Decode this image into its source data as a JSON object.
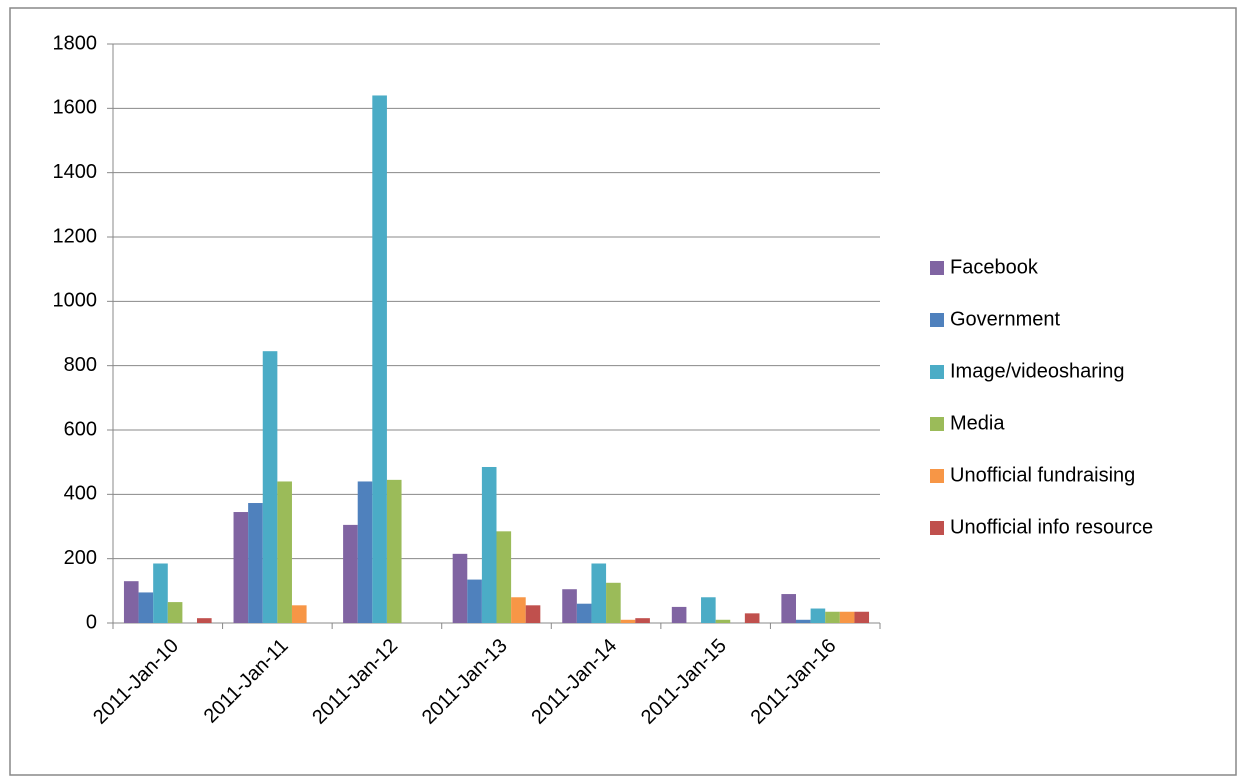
{
  "chart_data": {
    "type": "bar",
    "categories": [
      "2011-Jan-10",
      "2011-Jan-11",
      "2011-Jan-12",
      "2011-Jan-13",
      "2011-Jan-14",
      "2011-Jan-15",
      "2011-Jan-16"
    ],
    "series": [
      {
        "name": "Facebook",
        "color": "#8064a2",
        "values": [
          130,
          345,
          305,
          215,
          105,
          50,
          90
        ]
      },
      {
        "name": "Government",
        "color": "#4f81bd",
        "values": [
          95,
          373,
          440,
          135,
          60,
          0,
          10
        ]
      },
      {
        "name": "Image/videosharing",
        "color": "#4bacc6",
        "values": [
          185,
          845,
          1640,
          485,
          185,
          80,
          45
        ]
      },
      {
        "name": "Media",
        "color": "#9bbb59",
        "values": [
          65,
          440,
          445,
          285,
          125,
          10,
          35
        ]
      },
      {
        "name": "Unofficial fundraising",
        "color": "#f79646",
        "values": [
          0,
          55,
          0,
          80,
          10,
          0,
          35
        ]
      },
      {
        "name": "Unofficial info resource",
        "color": "#c0504d",
        "values": [
          15,
          0,
          0,
          55,
          15,
          30,
          35
        ]
      }
    ],
    "ylim": [
      0,
      1800
    ],
    "yticks": [
      0,
      200,
      400,
      600,
      800,
      1000,
      1200,
      1400,
      1600,
      1800
    ],
    "grid": true,
    "legend": "right"
  }
}
